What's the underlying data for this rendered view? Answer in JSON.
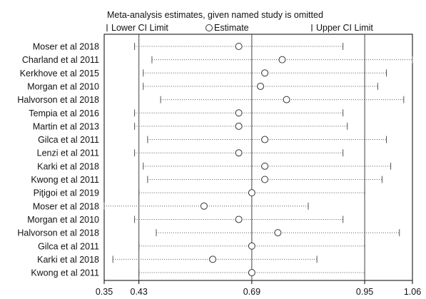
{
  "chart_data": {
    "type": "forest",
    "title": "Meta-analysis estimates, given named study is omitted",
    "legend": {
      "lower": "Lower CI Limit",
      "estimate": "Estimate",
      "upper": "Upper CI Limit"
    },
    "x_ticks": [
      "0.35",
      "0.43",
      "0.69",
      "0.95",
      "1.06"
    ],
    "x_tick_values": [
      0.35,
      0.43,
      0.69,
      0.95,
      1.06
    ],
    "xlim": [
      0.35,
      1.06
    ],
    "reference_lines": [
      0.43,
      0.69,
      0.95
    ],
    "studies": [
      {
        "label": "Moser et al 2018",
        "lower": 0.42,
        "estimate": 0.66,
        "upper": 0.9
      },
      {
        "label": "Charland et al 2011",
        "lower": 0.46,
        "estimate": 0.76,
        "upper": 1.06
      },
      {
        "label": "Kerkhove et al 2015",
        "lower": 0.44,
        "estimate": 0.72,
        "upper": 1.0
      },
      {
        "label": "Morgan et al 2010",
        "lower": 0.44,
        "estimate": 0.71,
        "upper": 0.98
      },
      {
        "label": "Halvorson et al 2018",
        "lower": 0.48,
        "estimate": 0.77,
        "upper": 1.04
      },
      {
        "label": "Tempia et al 2016",
        "lower": 0.42,
        "estimate": 0.66,
        "upper": 0.9
      },
      {
        "label": "Martin et al 2013",
        "lower": 0.42,
        "estimate": 0.66,
        "upper": 0.91
      },
      {
        "label": "Gilca et al 2011",
        "lower": 0.45,
        "estimate": 0.72,
        "upper": 1.0
      },
      {
        "label": "Lenzi et al 2011",
        "lower": 0.42,
        "estimate": 0.66,
        "upper": 0.9
      },
      {
        "label": "Karki et al 2018",
        "lower": 0.44,
        "estimate": 0.72,
        "upper": 1.01
      },
      {
        "label": "Kwong et al 2011",
        "lower": 0.45,
        "estimate": 0.72,
        "upper": 0.99
      },
      {
        "label": "Piţigoi et al 2019",
        "lower": 0.43,
        "estimate": 0.69,
        "upper": 0.95
      },
      {
        "label": "Moser et al 2018",
        "lower": 0.35,
        "estimate": 0.58,
        "upper": 0.82
      },
      {
        "label": "Morgan et al 2010",
        "lower": 0.42,
        "estimate": 0.66,
        "upper": 0.9
      },
      {
        "label": "Halvorson et al 2018",
        "lower": 0.47,
        "estimate": 0.75,
        "upper": 1.03
      },
      {
        "label": "Gilca et al 2011",
        "lower": 0.43,
        "estimate": 0.69,
        "upper": 0.95
      },
      {
        "label": "Karki et al 2018",
        "lower": 0.37,
        "estimate": 0.6,
        "upper": 0.84
      },
      {
        "label": "Kwong et al 2011",
        "lower": 0.43,
        "estimate": 0.69,
        "upper": 0.95
      }
    ]
  },
  "colors": {
    "text": "#111111",
    "frame": "#000000",
    "reference_line": "#444444",
    "ci_line": "#555555",
    "marker": "#333333"
  }
}
